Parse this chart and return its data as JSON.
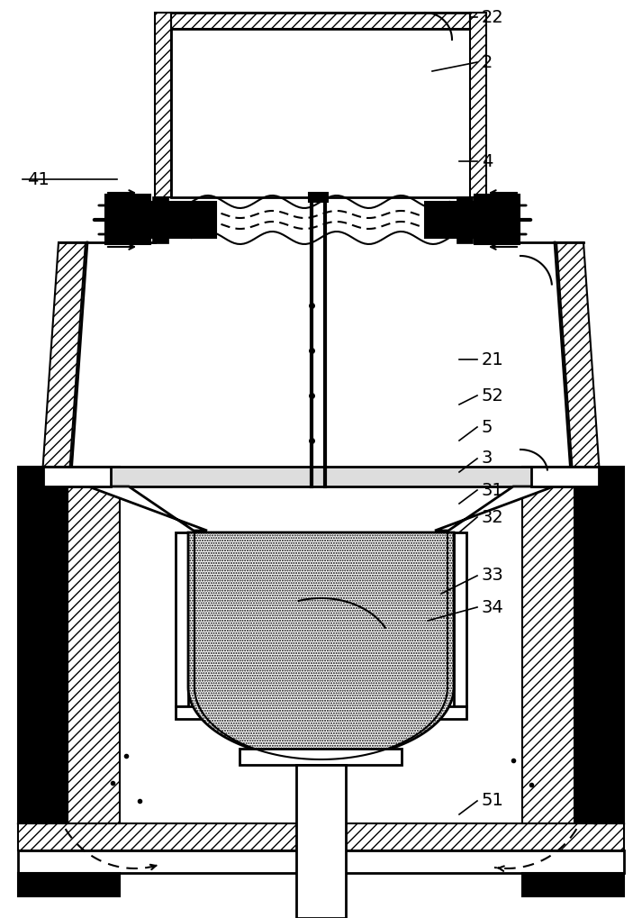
{
  "bg_color": "#ffffff",
  "line_color": "#000000",
  "labels": [
    "22",
    "2",
    "4",
    "41",
    "21",
    "52",
    "5",
    "3",
    "31",
    "32",
    "33",
    "34",
    "51"
  ]
}
